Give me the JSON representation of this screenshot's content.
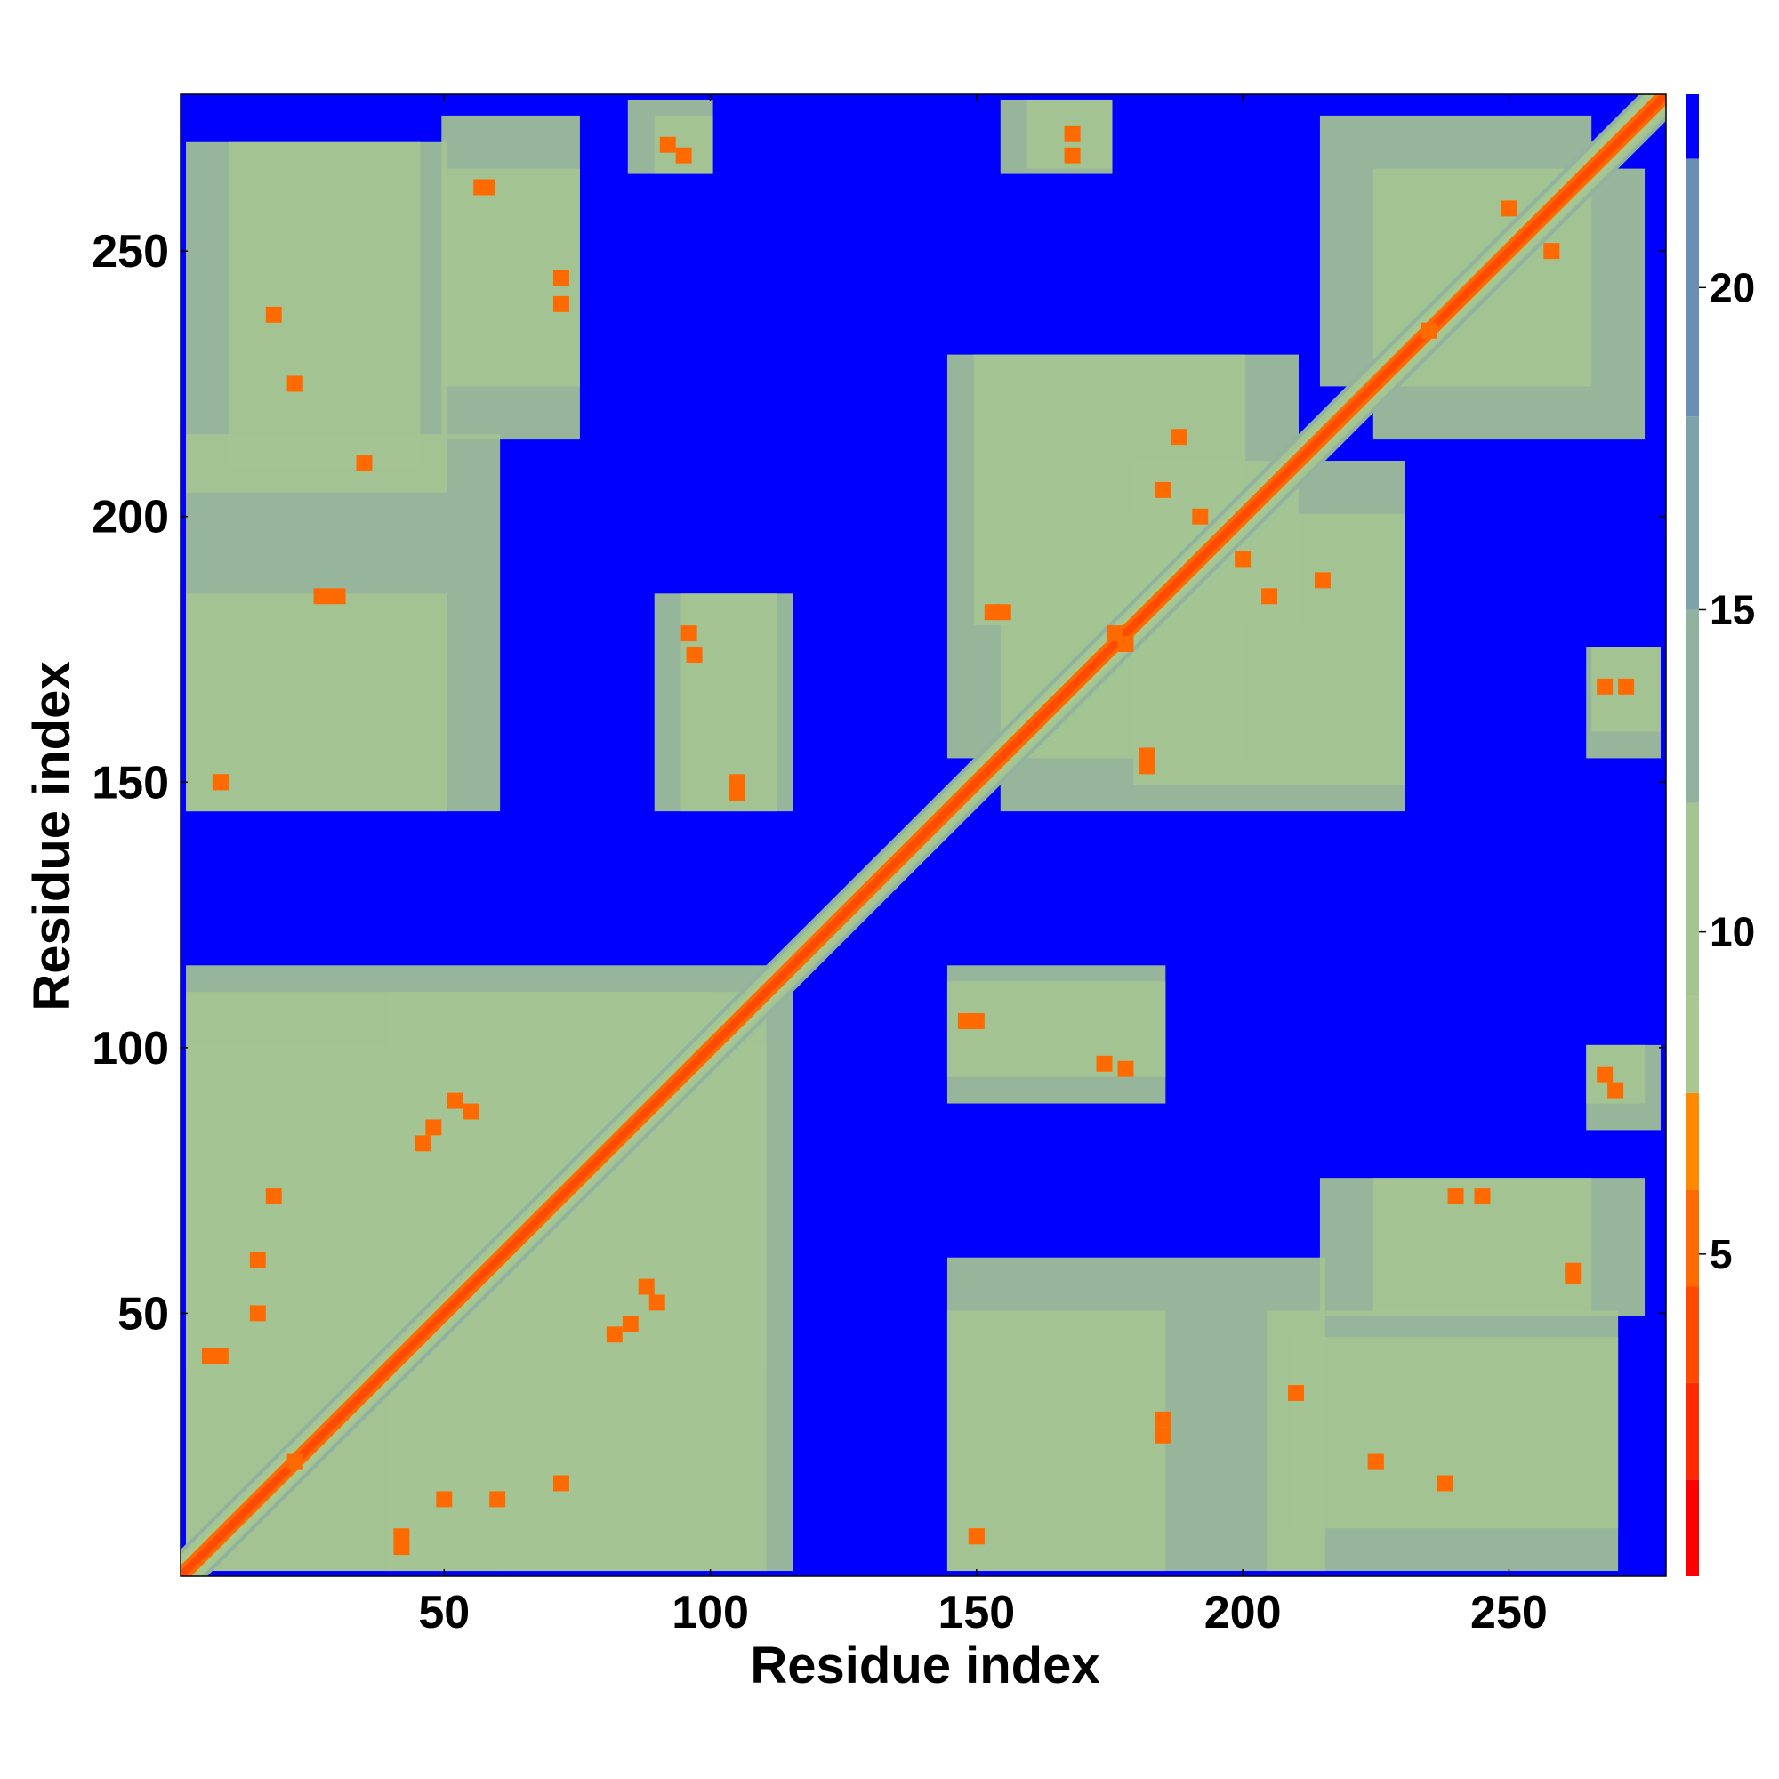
{
  "chart_data": {
    "type": "heatmap",
    "title": "",
    "xlabel": "Residue index",
    "ylabel": "Residue index",
    "n_residues": 279,
    "xlim": [
      1,
      279
    ],
    "ylim": [
      1,
      279
    ],
    "x_ticks": [
      50,
      100,
      150,
      200,
      250
    ],
    "y_ticks": [
      50,
      100,
      150,
      200,
      250
    ],
    "colorbar": {
      "ticks": [
        5,
        10,
        15,
        20
      ],
      "range": [
        0,
        23
      ],
      "saturated_above": 22,
      "color_bins": [
        {
          "from": 0,
          "to": 1.5,
          "color": "#ff0000"
        },
        {
          "from": 1.5,
          "to": 3,
          "color": "#ff2a00"
        },
        {
          "from": 3,
          "to": 4.5,
          "color": "#ff4a00"
        },
        {
          "from": 4.5,
          "to": 6,
          "color": "#ff6a00"
        },
        {
          "from": 6,
          "to": 7.5,
          "color": "#ff8a00"
        },
        {
          "from": 7.5,
          "to": 9,
          "color": "#a8c890"
        },
        {
          "from": 9,
          "to": 12,
          "color": "#a4c492"
        },
        {
          "from": 12,
          "to": 15,
          "color": "#90b29e"
        },
        {
          "from": 15,
          "to": 18,
          "color": "#7ea2ac"
        },
        {
          "from": 18,
          "to": 22,
          "color": "#6a8fb4"
        },
        {
          "from": 22,
          "to": 23,
          "color": "#0000ff"
        }
      ]
    },
    "background_color": "#0000ff",
    "diagonal": {
      "value": 1,
      "band_width": 5
    },
    "contact_regions": [
      {
        "x": [
          2,
          60
        ],
        "y": [
          2,
          110
        ],
        "value": 9
      },
      {
        "x": [
          40,
          115
        ],
        "y": [
          2,
          110
        ],
        "value": 9
      },
      {
        "x": [
          2,
          110
        ],
        "y": [
          40,
          100
        ],
        "value": 9
      },
      {
        "x": [
          145,
          215
        ],
        "y": [
          2,
          60
        ],
        "value": 10
      },
      {
        "x": [
          210,
          270
        ],
        "y": [
          10,
          45
        ],
        "value": 10
      },
      {
        "x": [
          145,
          185
        ],
        "y": [
          90,
          112
        ],
        "value": 10
      },
      {
        "x": [
          215,
          265
        ],
        "y": [
          50,
          75
        ],
        "value": 10
      },
      {
        "x": [
          265,
          275
        ],
        "y": [
          90,
          100
        ],
        "value": 11
      },
      {
        "x": [
          145,
          200
        ],
        "y": [
          155,
          230
        ],
        "value": 10
      },
      {
        "x": [
          180,
          230
        ],
        "y": [
          150,
          210
        ],
        "value": 10
      },
      {
        "x": [
          215,
          265
        ],
        "y": [
          225,
          275
        ],
        "value": 10
      },
      {
        "x": [
          266,
          278
        ],
        "y": [
          160,
          175
        ],
        "value": 11
      },
      {
        "x": [
          2,
          50
        ],
        "y": [
          145,
          185
        ],
        "value": 10
      },
      {
        "x": [
          95,
          115
        ],
        "y": [
          145,
          185
        ],
        "value": 10
      },
      {
        "x": [
          2,
          50
        ],
        "y": [
          205,
          270
        ],
        "value": 10
      },
      {
        "x": [
          50,
          75
        ],
        "y": [
          225,
          275
        ],
        "value": 10
      },
      {
        "x": [
          85,
          100
        ],
        "y": [
          265,
          278
        ],
        "value": 11
      },
      {
        "x": [
          155,
          175
        ],
        "y": [
          265,
          278
        ],
        "value": 11
      }
    ],
    "close_contacts": [
      {
        "x": 6,
        "y": 42,
        "value": 5
      },
      {
        "x": 15,
        "y": 50,
        "value": 5
      },
      {
        "x": 22,
        "y": 22,
        "value": 5
      },
      {
        "x": 42,
        "y": 8,
        "value": 5
      },
      {
        "x": 60,
        "y": 15,
        "value": 5
      },
      {
        "x": 72,
        "y": 18,
        "value": 5
      },
      {
        "x": 48,
        "y": 85,
        "value": 5
      },
      {
        "x": 52,
        "y": 90,
        "value": 5
      },
      {
        "x": 82,
        "y": 46,
        "value": 5
      },
      {
        "x": 88,
        "y": 55,
        "value": 5
      },
      {
        "x": 97,
        "y": 174,
        "value": 5
      },
      {
        "x": 105,
        "y": 150,
        "value": 5
      },
      {
        "x": 8,
        "y": 150,
        "value": 5
      },
      {
        "x": 30,
        "y": 185,
        "value": 5
      },
      {
        "x": 18,
        "y": 238,
        "value": 5
      },
      {
        "x": 22,
        "y": 225,
        "value": 5
      },
      {
        "x": 58,
        "y": 262,
        "value": 5
      },
      {
        "x": 72,
        "y": 245,
        "value": 5
      },
      {
        "x": 92,
        "y": 270,
        "value": 5
      },
      {
        "x": 150,
        "y": 8,
        "value": 5
      },
      {
        "x": 148,
        "y": 105,
        "value": 5
      },
      {
        "x": 178,
        "y": 96,
        "value": 5
      },
      {
        "x": 185,
        "y": 27,
        "value": 5
      },
      {
        "x": 210,
        "y": 35,
        "value": 5
      },
      {
        "x": 225,
        "y": 22,
        "value": 5
      },
      {
        "x": 240,
        "y": 72,
        "value": 5
      },
      {
        "x": 262,
        "y": 57,
        "value": 5
      },
      {
        "x": 268,
        "y": 95,
        "value": 5
      },
      {
        "x": 155,
        "y": 182,
        "value": 5
      },
      {
        "x": 182,
        "y": 153,
        "value": 5
      },
      {
        "x": 178,
        "y": 176,
        "value": 5
      },
      {
        "x": 192,
        "y": 200,
        "value": 5
      },
      {
        "x": 205,
        "y": 185,
        "value": 5
      },
      {
        "x": 188,
        "y": 215,
        "value": 5
      },
      {
        "x": 235,
        "y": 235,
        "value": 5
      },
      {
        "x": 250,
        "y": 258,
        "value": 5
      },
      {
        "x": 268,
        "y": 168,
        "value": 5
      },
      {
        "x": 168,
        "y": 272,
        "value": 5
      }
    ]
  }
}
